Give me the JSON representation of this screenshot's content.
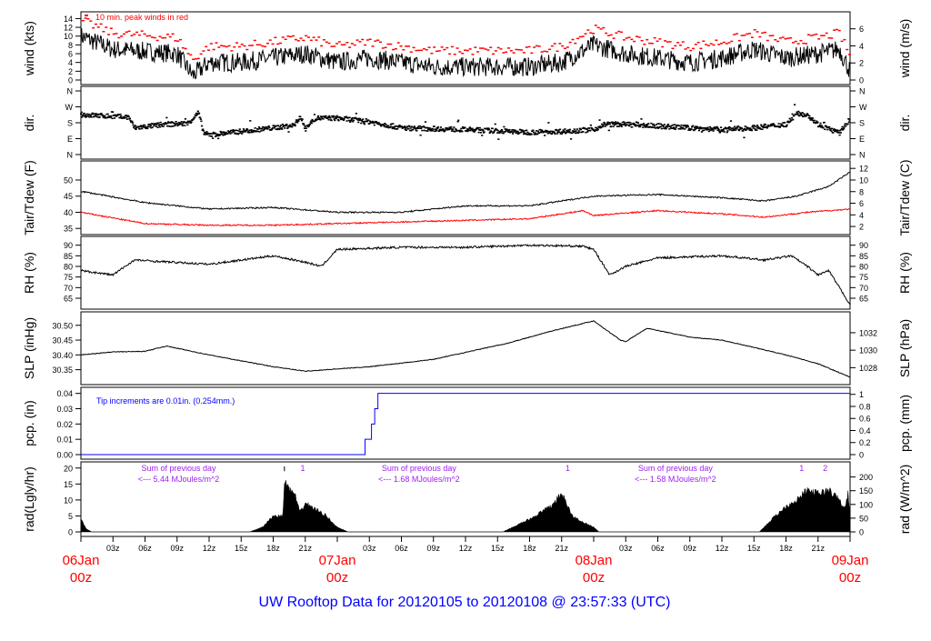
{
  "title": "UW Rooftop Data for 20120105  to  20120108 @ 23:57:33  (UTC)",
  "colors": {
    "text_red": "#ff0000",
    "blue": "#0000ff",
    "purple": "#a020f0",
    "title_blue": "#0000ff"
  },
  "chart_data": [
    {
      "id": "wind",
      "type": "line",
      "ylabel": "wind (kts)",
      "ylabel_right": "wind (m/s)",
      "ylim": [
        0,
        14.5
      ],
      "yticks": [
        0,
        2,
        4,
        6,
        8,
        10,
        12,
        14
      ],
      "yticks_right_ms": [
        0,
        2,
        4,
        6
      ],
      "annotation": "10 min. peak winds in red",
      "series": [
        {
          "name": "wind",
          "color": "#000000",
          "noise": 2.2,
          "points": [
            [
              0,
              10
            ],
            [
              3,
              7
            ],
            [
              6,
              6.5
            ],
            [
              9,
              6
            ],
            [
              10.5,
              1
            ],
            [
              12,
              4
            ],
            [
              15,
              4
            ],
            [
              18,
              5
            ],
            [
              21,
              6
            ],
            [
              24,
              4
            ],
            [
              27,
              5
            ],
            [
              30,
              4
            ],
            [
              33,
              3
            ],
            [
              36,
              3
            ],
            [
              39,
              3
            ],
            [
              42,
              3
            ],
            [
              45,
              4
            ],
            [
              48,
              8
            ],
            [
              51,
              6
            ],
            [
              54,
              5
            ],
            [
              57,
              4
            ],
            [
              60,
              5
            ],
            [
              63,
              7
            ],
            [
              66,
              5
            ],
            [
              69,
              6
            ],
            [
              71,
              7
            ],
            [
              72,
              2
            ]
          ]
        },
        {
          "name": "10 min peak",
          "color": "#ff0000",
          "style": "dots",
          "offset": 2.6
        }
      ]
    },
    {
      "id": "dir",
      "type": "scatter",
      "ylabel": "dir.",
      "ylabel_right": "dir.",
      "ylim": [
        0,
        360
      ],
      "yticks": [
        0,
        90,
        180,
        270,
        360
      ],
      "ytick_labels": [
        "N",
        "E",
        "S",
        "W",
        "N"
      ],
      "series": [
        {
          "name": "direction",
          "color": "#000000",
          "noise": 14,
          "points": [
            [
              0,
              225
            ],
            [
              3,
              215
            ],
            [
              4.5,
              210
            ],
            [
              5,
              150
            ],
            [
              8,
              170
            ],
            [
              10,
              175
            ],
            [
              11,
              235
            ],
            [
              11.5,
              120
            ],
            [
              12,
              110
            ],
            [
              15,
              130
            ],
            [
              18,
              150
            ],
            [
              20,
              165
            ],
            [
              20.5,
              215
            ],
            [
              21,
              150
            ],
            [
              22,
              205
            ],
            [
              24,
              205
            ],
            [
              27,
              185
            ],
            [
              30,
              150
            ],
            [
              36,
              140
            ],
            [
              42,
              125
            ],
            [
              45,
              130
            ],
            [
              48,
              140
            ],
            [
              49,
              170
            ],
            [
              51,
              170
            ],
            [
              54,
              160
            ],
            [
              60,
              140
            ],
            [
              63,
              150
            ],
            [
              66,
              170
            ],
            [
              67,
              230
            ],
            [
              68,
              225
            ],
            [
              69,
              170
            ],
            [
              71,
              120
            ],
            [
              72,
              200
            ]
          ]
        }
      ]
    },
    {
      "id": "temp",
      "type": "line",
      "ylabel": "Tair/Tdew (F)",
      "ylabel_right": "Tair/Tdew (C)",
      "ylim": [
        34.5,
        54.5
      ],
      "yticks": [
        35,
        40,
        45,
        50
      ],
      "yticks_right_c": [
        2,
        4,
        6,
        8,
        10,
        12
      ],
      "series": [
        {
          "name": "Tair",
          "color": "#000000",
          "noise": 0.35,
          "points": [
            [
              0,
              46.5
            ],
            [
              6,
              43
            ],
            [
              12,
              41
            ],
            [
              18,
              41.5
            ],
            [
              24,
              40
            ],
            [
              30,
              40
            ],
            [
              36,
              42
            ],
            [
              42,
              42
            ],
            [
              48,
              45
            ],
            [
              54,
              45.5
            ],
            [
              60,
              44.5
            ],
            [
              64,
              43.5
            ],
            [
              67,
              45
            ],
            [
              70,
              48
            ],
            [
              72,
              52.5
            ]
          ]
        },
        {
          "name": "Tdew",
          "color": "#ff0000",
          "noise": 0.35,
          "points": [
            [
              0,
              40
            ],
            [
              6,
              36.5
            ],
            [
              12,
              36
            ],
            [
              18,
              36
            ],
            [
              24,
              36.5
            ],
            [
              30,
              37
            ],
            [
              36,
              37.5
            ],
            [
              42,
              38
            ],
            [
              47,
              40.5
            ],
            [
              48,
              39
            ],
            [
              54,
              40.5
            ],
            [
              60,
              39.5
            ],
            [
              64,
              38.5
            ],
            [
              68,
              40
            ],
            [
              72,
              41
            ]
          ]
        }
      ]
    },
    {
      "id": "rh",
      "type": "line",
      "ylabel": "RH (%)",
      "ylabel_right": "RH (%)",
      "ylim": [
        62,
        92
      ],
      "yticks": [
        65,
        70,
        75,
        80,
        85,
        90
      ],
      "series": [
        {
          "name": "RH",
          "color": "#000000",
          "noise": 0.8,
          "points": [
            [
              0,
              78
            ],
            [
              3,
              76
            ],
            [
              5,
              83
            ],
            [
              12,
              81
            ],
            [
              18,
              85
            ],
            [
              21,
              82
            ],
            [
              22.5,
              80
            ],
            [
              24,
              88
            ],
            [
              30,
              89
            ],
            [
              36,
              89
            ],
            [
              42,
              90
            ],
            [
              47,
              89.5
            ],
            [
              48,
              88
            ],
            [
              49.5,
              76
            ],
            [
              51,
              80
            ],
            [
              54,
              84
            ],
            [
              60,
              85
            ],
            [
              64,
              83
            ],
            [
              66.5,
              85
            ],
            [
              68,
              80
            ],
            [
              69,
              76
            ],
            [
              70,
              78
            ],
            [
              72,
              62
            ]
          ]
        }
      ]
    },
    {
      "id": "slp",
      "type": "line",
      "ylabel": "SLP (inHg)",
      "ylabel_right": "SLP (hPa)",
      "ylim": [
        30.315,
        30.53
      ],
      "yticks": [
        30.35,
        30.4,
        30.45,
        30.5
      ],
      "ytick_labels": [
        "30.35",
        "30.40",
        "30.45",
        "30.50"
      ],
      "yticks_right_hpa": [
        1028,
        1030,
        1032
      ],
      "series": [
        {
          "name": "SLP",
          "color": "#000000",
          "noise": 0.002,
          "points": [
            [
              0,
              30.4
            ],
            [
              3,
              30.41
            ],
            [
              6,
              30.412
            ],
            [
              8,
              30.43
            ],
            [
              12,
              30.4
            ],
            [
              18,
              30.36
            ],
            [
              21,
              30.345
            ],
            [
              27,
              30.36
            ],
            [
              33,
              30.385
            ],
            [
              40,
              30.44
            ],
            [
              44,
              30.48
            ],
            [
              48,
              30.515
            ],
            [
              50.5,
              30.45
            ],
            [
              51,
              30.445
            ],
            [
              53,
              30.49
            ],
            [
              57,
              30.46
            ],
            [
              60,
              30.45
            ],
            [
              66,
              30.4
            ],
            [
              69,
              30.37
            ],
            [
              72,
              30.325
            ]
          ]
        }
      ]
    },
    {
      "id": "pcp",
      "type": "step",
      "ylabel": "pcp. (in)",
      "ylabel_right": "pcp. (mm)",
      "ylim": [
        0,
        0.041
      ],
      "yticks": [
        0,
        0.01,
        0.02,
        0.03,
        0.04
      ],
      "ytick_labels": [
        "0.00",
        "0.01",
        "0.02",
        "0.03",
        "0.04"
      ],
      "yticks_right_mm": [
        0,
        0.2,
        0.4,
        0.6,
        0.8,
        1
      ],
      "annotation": "Tip increments are 0.01in. (0.254mm.)",
      "series": [
        {
          "name": "precip",
          "color": "#0000ff",
          "points": [
            [
              0,
              0
            ],
            [
              26.6,
              0.01
            ],
            [
              27.2,
              0.02
            ],
            [
              27.5,
              0.03
            ],
            [
              27.8,
              0.04
            ],
            [
              72,
              0.04
            ]
          ]
        }
      ]
    },
    {
      "id": "rad",
      "type": "area",
      "ylabel": "rad(Lgly/hr)",
      "ylabel_right": "rad (W/m^2)",
      "ylim": [
        0,
        20.5
      ],
      "yticks": [
        0,
        5,
        10,
        15,
        20
      ],
      "yticks_right_wm2": [
        0,
        50,
        100,
        150,
        200
      ],
      "annotations": [
        {
          "hour": 10,
          "line1": "Sum of previous day",
          "line2": "<--- 5.44 MJoules/m^2"
        },
        {
          "hour": 32.5,
          "line1": "Sum of previous day",
          "line2": "<--- 1.68 MJoules/m^2"
        },
        {
          "hour": 56.5,
          "line1": "Sum of previous day",
          "line2": "<--- 1.58 MJoules/m^2"
        }
      ],
      "markers": [
        {
          "hour": 20.6,
          "label": "1"
        },
        {
          "hour": 45.4,
          "label": "1"
        },
        {
          "hour": 67.3,
          "label": "1"
        },
        {
          "hour": 69.5,
          "label": "2"
        }
      ],
      "series": [
        {
          "name": "radiation",
          "color": "#000000",
          "noise": 1.2,
          "points": [
            [
              0,
              4
            ],
            [
              0.5,
              1
            ],
            [
              1,
              0
            ],
            [
              15.8,
              0
            ],
            [
              17,
              1.5
            ],
            [
              18,
              5
            ],
            [
              18.9,
              5
            ],
            [
              19.1,
              17
            ],
            [
              19.5,
              13
            ],
            [
              20,
              12
            ],
            [
              20.5,
              6
            ],
            [
              21,
              9
            ],
            [
              22,
              7
            ],
            [
              23,
              5
            ],
            [
              23.8,
              2
            ],
            [
              24,
              1.5
            ],
            [
              25,
              0
            ],
            [
              39.5,
              0
            ],
            [
              42,
              4
            ],
            [
              44,
              8
            ],
            [
              45,
              12
            ],
            [
              46,
              5
            ],
            [
              47,
              3
            ],
            [
              48,
              1.5
            ],
            [
              48.5,
              0
            ],
            [
              63.5,
              0
            ],
            [
              65,
              5
            ],
            [
              66,
              8
            ],
            [
              67,
              10
            ],
            [
              68,
              13
            ],
            [
              69,
              12
            ],
            [
              70,
              13
            ],
            [
              71,
              10
            ],
            [
              71.5,
              7
            ],
            [
              71.8,
              12
            ],
            [
              72,
              5
            ]
          ]
        }
      ]
    }
  ],
  "xaxis": {
    "hours": 72,
    "ticks": [
      "03z",
      "06z",
      "09z",
      "12z",
      "15z",
      "18z",
      "21z"
    ],
    "days": [
      {
        "hour": 0,
        "date": "06Jan",
        "time": "00z"
      },
      {
        "hour": 24,
        "date": "07Jan",
        "time": "00z"
      },
      {
        "hour": 48,
        "date": "08Jan",
        "time": "00z"
      },
      {
        "hour": 72,
        "date": "09Jan",
        "time": "00z"
      }
    ]
  }
}
